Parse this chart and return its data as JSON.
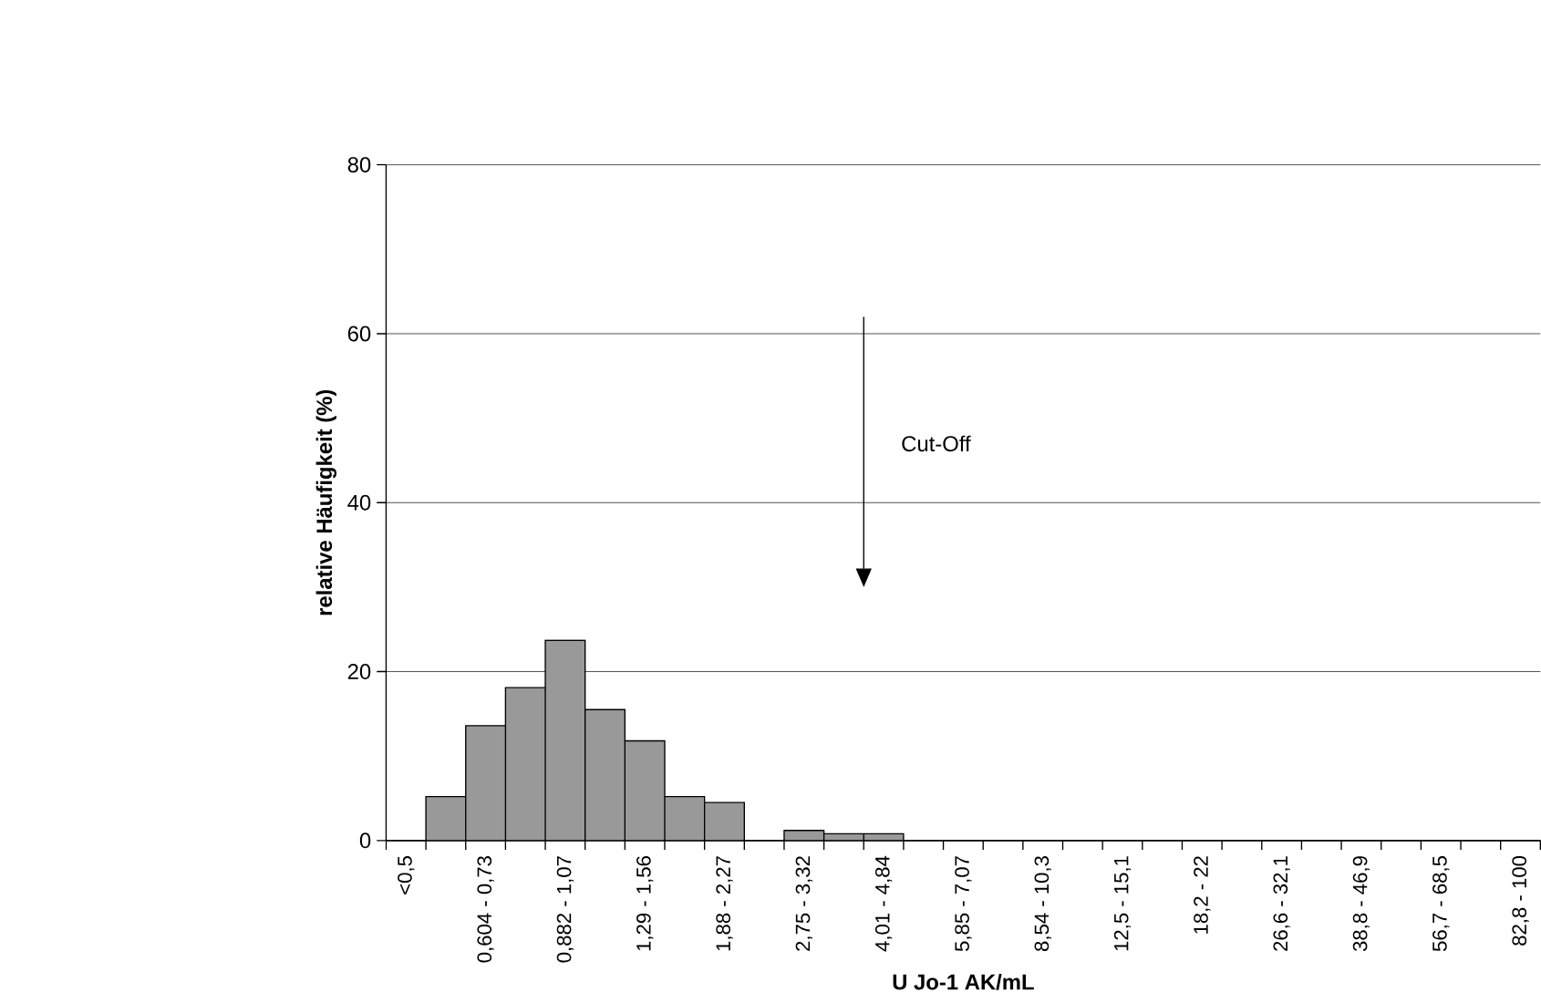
{
  "chart_data": {
    "type": "bar",
    "xlabel": "U Jo-1 AK/mL",
    "ylabel": "relative Häufigkeit (%)",
    "categories": [
      "<0,5",
      null,
      "0,604 - 0,73",
      null,
      "0,882 - 1,07",
      null,
      "1,29 - 1,56",
      null,
      "1,88 - 2,27",
      null,
      "2,75 - 3,32",
      null,
      "4,01 - 4,84",
      null,
      "5,85 - 7,07",
      null,
      "8,54 - 10,3",
      null,
      "12,5 - 15,1",
      null,
      "18,2 - 22",
      null,
      "26,6 - 32,1",
      null,
      "38,8 - 46,9",
      null,
      "56,7 - 68,5",
      null,
      "82,8 - 100"
    ],
    "values": [
      0,
      5.2,
      13.6,
      18.1,
      23.7,
      15.5,
      11.8,
      5.2,
      4.5,
      0,
      1.2,
      0.8,
      0.8,
      0,
      0,
      0,
      0,
      0,
      0,
      0,
      0,
      0,
      0,
      0,
      0,
      0,
      0,
      0,
      0
    ],
    "color": "#999999",
    "ylim": [
      0,
      80
    ],
    "yticks": [
      0,
      20,
      40,
      60,
      80
    ],
    "grid": "y",
    "annotations": [
      "Cut-Off"
    ]
  }
}
